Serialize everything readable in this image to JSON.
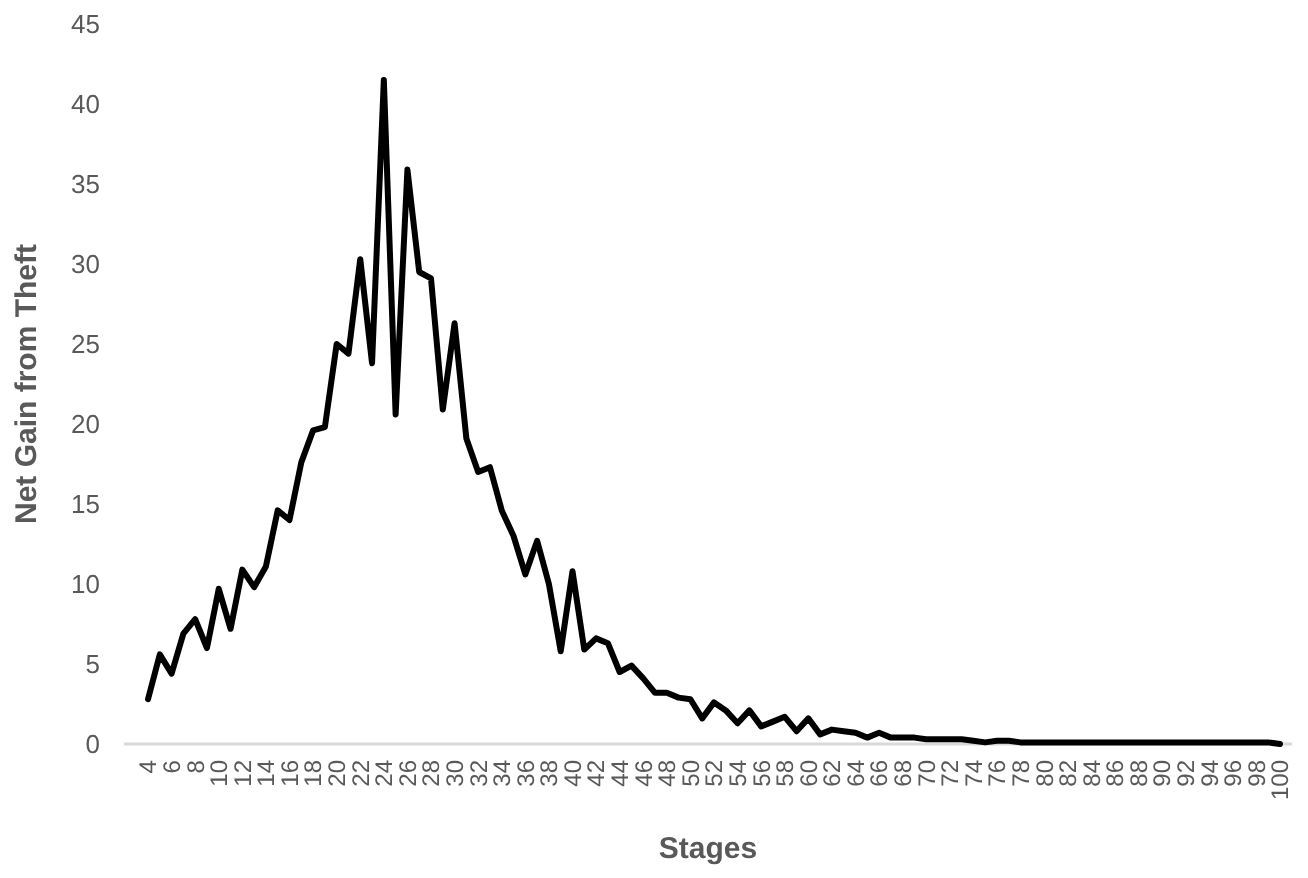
{
  "chart_data": {
    "type": "line",
    "xlabel": "Stages",
    "ylabel": "Net Gain from Theft",
    "categories": [
      "4",
      null,
      "6",
      null,
      "8",
      null,
      "10",
      null,
      "12",
      null,
      "14",
      null,
      "16",
      null,
      "18",
      null,
      "20",
      null,
      "22",
      null,
      "24",
      null,
      "26",
      null,
      "28",
      null,
      "30",
      null,
      "32",
      null,
      "34",
      null,
      "36",
      null,
      "38",
      null,
      "40",
      null,
      "42",
      null,
      "44",
      null,
      "46",
      null,
      "48",
      null,
      "50",
      null,
      "52",
      null,
      "54",
      null,
      "56",
      null,
      "58",
      null,
      "60",
      null,
      "62",
      null,
      "64",
      null,
      "66",
      null,
      "68",
      null,
      "70",
      null,
      "72",
      null,
      "74",
      null,
      "76",
      null,
      "78",
      null,
      "80",
      null,
      "82",
      null,
      "84",
      null,
      "86",
      null,
      "88",
      null,
      "90",
      null,
      "92",
      null,
      "94",
      null,
      "96",
      null,
      "98",
      null,
      "100"
    ],
    "series": [
      {
        "color": "#000000",
        "values": [
          2.8,
          5.6,
          4.4,
          6.9,
          7.8,
          6.0,
          9.7,
          7.2,
          10.9,
          9.8,
          11.1,
          14.6,
          14.0,
          17.6,
          19.6,
          19.8,
          25.0,
          24.4,
          30.3,
          23.8,
          41.5,
          20.6,
          35.9,
          29.5,
          29.1,
          20.9,
          26.3,
          19.1,
          17.0,
          17.3,
          14.6,
          13.0,
          10.6,
          12.7,
          10.0,
          5.8,
          10.8,
          5.9,
          6.6,
          6.3,
          4.5,
          4.9,
          4.1,
          3.2,
          3.2,
          2.9,
          2.8,
          1.6,
          2.6,
          2.1,
          1.3,
          2.1,
          1.1,
          1.4,
          1.7,
          0.8,
          1.6,
          0.6,
          0.9,
          0.8,
          0.7,
          0.4,
          0.7,
          0.4,
          0.4,
          0.4,
          0.3,
          0.3,
          0.3,
          0.3,
          0.2,
          0.1,
          0.2,
          0.2,
          0.1,
          0.1,
          0.1,
          0.1,
          0.1,
          0.1,
          0.1,
          0.1,
          0.1,
          0.1,
          0.1,
          0.1,
          0.1,
          0.1,
          0.1,
          0.1,
          0.1,
          0.1,
          0.1,
          0.1,
          0.1,
          0.1,
          0.0
        ]
      }
    ],
    "ylim": [
      0,
      45
    ],
    "yticks": [
      0,
      5,
      10,
      15,
      20,
      25,
      30,
      35,
      40,
      45
    ],
    "grid": false,
    "marker": "none",
    "line_style": "solid"
  }
}
